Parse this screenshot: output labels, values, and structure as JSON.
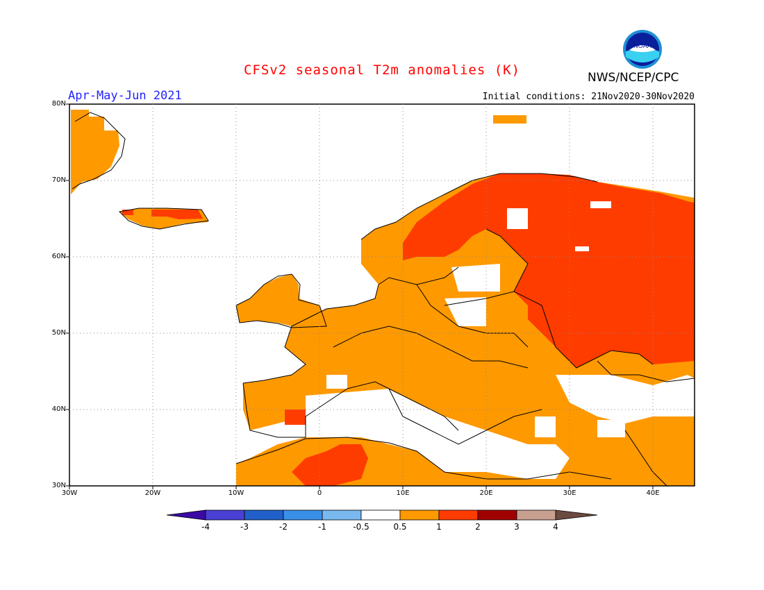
{
  "header": {
    "title": "CFSv2 seasonal T2m anomalies (K)",
    "agency": "NWS/NCEP/CPC",
    "period": "Apr-May-Jun 2021",
    "initial_conditions": "Initial conditions: 21Nov2020-30Nov2020",
    "logo_text": "NOAA"
  },
  "axes": {
    "lat_ticks": [
      "80N",
      "70N",
      "60N",
      "50N",
      "40N",
      "30N"
    ],
    "lon_ticks": [
      "30W",
      "20W",
      "10W",
      "0",
      "10E",
      "20E",
      "30E",
      "40E"
    ]
  },
  "colorbar": {
    "labels": [
      "-4",
      "-3",
      "-2",
      "-1",
      "-0.5",
      "0.5",
      "1",
      "2",
      "3",
      "4"
    ],
    "colors": [
      "#3a0aa3",
      "#4a40d4",
      "#2060c8",
      "#3a90e8",
      "#7ab8f0",
      "#ffffff",
      "#ff9900",
      "#ff3c00",
      "#a00000",
      "#c8a090",
      "#6b4a40"
    ]
  }
}
